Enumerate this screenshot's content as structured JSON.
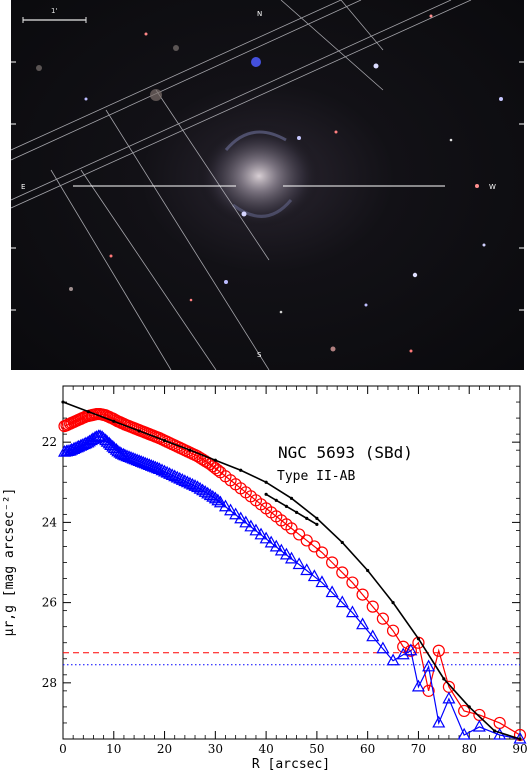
{
  "image": {
    "scale_label": "1'",
    "compass": {
      "north": "N",
      "south": "S",
      "east": "E",
      "west": "W"
    }
  },
  "chart_data": {
    "type": "line",
    "title": "NGC 5693 (SBd)",
    "subtitle": "Type II-AB",
    "xlabel": "R [arcsec]",
    "ylabel": "μr,g [mag arcsec⁻²]",
    "xlim": [
      0,
      90
    ],
    "ylim": [
      29.4,
      20.6
    ],
    "xticks": [
      0,
      10,
      20,
      30,
      40,
      50,
      60,
      70,
      80,
      90
    ],
    "yticks": [
      22,
      24,
      26,
      28
    ],
    "series": [
      {
        "color": "#ff0000",
        "marker": "circle",
        "x": [
          0.3,
          0.7,
          1.0,
          1.4,
          1.7,
          2.1,
          2.4,
          2.8,
          3.1,
          3.5,
          3.8,
          4.2,
          4.5,
          4.9,
          5.2,
          5.6,
          5.9,
          6.3,
          6.6,
          7.0,
          7.3,
          7.7,
          8.0,
          8.4,
          8.7,
          9.1,
          9.4,
          9.8,
          10.1,
          10.5,
          10.8,
          11.2,
          11.5,
          11.9,
          12.2,
          12.6,
          13.0,
          13.4,
          13.8,
          14.2,
          14.6,
          15.0,
          15.4,
          15.8,
          16.2,
          16.6,
          17.0,
          17.4,
          17.8,
          18.2,
          18.6,
          19.0,
          19.5,
          20.0,
          20.5,
          21.0,
          21.5,
          22.0,
          22.5,
          23.0,
          23.5,
          24.0,
          24.5,
          25.0,
          25.5,
          26.0,
          26.5,
          27.0,
          27.5,
          28.0,
          28.5,
          29.0,
          29.5,
          30.0,
          30.5,
          31.0,
          32.0,
          33.0,
          34.0,
          35.0,
          36.0,
          37.0,
          38.0,
          39.0,
          40.0,
          41.0,
          42.0,
          43.0,
          44.0,
          45.0,
          46.5,
          48.0,
          49.5,
          51.0,
          53.0,
          55.0,
          57.0,
          59.0,
          61.0,
          63.0,
          65.0,
          67.0,
          68.5,
          70.0,
          72.0,
          74.0,
          76.0,
          79.0,
          82.0,
          86.0,
          90.0
        ],
        "y": [
          21.6,
          21.58,
          21.56,
          21.54,
          21.52,
          21.5,
          21.48,
          21.46,
          21.44,
          21.42,
          21.4,
          21.38,
          21.36,
          21.35,
          21.34,
          21.33,
          21.32,
          21.31,
          21.3,
          21.3,
          21.3,
          21.31,
          21.32,
          21.33,
          21.35,
          21.37,
          21.39,
          21.41,
          21.43,
          21.46,
          21.48,
          21.5,
          21.52,
          21.54,
          21.56,
          21.58,
          21.6,
          21.62,
          21.64,
          21.66,
          21.68,
          21.7,
          21.72,
          21.74,
          21.76,
          21.78,
          21.8,
          21.82,
          21.84,
          21.86,
          21.88,
          21.9,
          21.93,
          21.96,
          21.99,
          22.02,
          22.05,
          22.08,
          22.11,
          22.14,
          22.17,
          22.2,
          22.23,
          22.26,
          22.29,
          22.32,
          22.35,
          22.39,
          22.43,
          22.47,
          22.51,
          22.55,
          22.6,
          22.65,
          22.7,
          22.75,
          22.85,
          22.95,
          23.05,
          23.15,
          23.25,
          23.35,
          23.45,
          23.55,
          23.65,
          23.75,
          23.85,
          23.95,
          24.05,
          24.15,
          24.3,
          24.45,
          24.6,
          24.75,
          25.0,
          25.25,
          25.5,
          25.8,
          26.1,
          26.4,
          26.7,
          27.1,
          27.2,
          27.0,
          28.2,
          27.2,
          28.1,
          28.7,
          28.8,
          29.0,
          29.3
        ]
      },
      {
        "color": "#0000ff",
        "marker": "triangle",
        "x": [
          0.3,
          0.7,
          1.0,
          1.4,
          1.7,
          2.1,
          2.4,
          2.8,
          3.1,
          3.5,
          3.8,
          4.2,
          4.5,
          4.9,
          5.2,
          5.6,
          5.9,
          6.3,
          6.6,
          7.0,
          7.3,
          7.7,
          8.0,
          8.4,
          8.7,
          9.1,
          9.4,
          9.8,
          10.1,
          10.5,
          10.8,
          11.2,
          11.5,
          11.9,
          12.2,
          12.6,
          13.0,
          13.4,
          13.8,
          14.2,
          14.6,
          15.0,
          15.4,
          15.8,
          16.2,
          16.6,
          17.0,
          17.4,
          17.8,
          18.2,
          18.6,
          19.0,
          19.5,
          20.0,
          20.5,
          21.0,
          21.5,
          22.0,
          22.5,
          23.0,
          23.5,
          24.0,
          24.5,
          25.0,
          25.5,
          26.0,
          26.5,
          27.0,
          27.5,
          28.0,
          28.5,
          29.0,
          29.5,
          30.0,
          30.5,
          31.0,
          32.0,
          33.0,
          34.0,
          35.0,
          36.0,
          37.0,
          38.0,
          39.0,
          40.0,
          41.0,
          42.0,
          43.0,
          44.0,
          45.0,
          46.5,
          48.0,
          49.5,
          51.0,
          53.0,
          55.0,
          57.0,
          59.0,
          61.0,
          63.0,
          65.0,
          67.0,
          68.5,
          70.0,
          72.0,
          74.0,
          76.0,
          79.0,
          82.0,
          86.0,
          90.0
        ],
        "y": [
          22.25,
          22.24,
          22.23,
          22.22,
          22.2,
          22.18,
          22.16,
          22.14,
          22.12,
          22.1,
          22.08,
          22.06,
          22.04,
          22.02,
          21.99,
          21.96,
          21.93,
          21.9,
          21.88,
          21.86,
          21.86,
          21.88,
          21.92,
          21.96,
          22.0,
          22.04,
          22.08,
          22.12,
          22.16,
          22.2,
          22.24,
          22.27,
          22.3,
          22.32,
          22.34,
          22.36,
          22.38,
          22.4,
          22.42,
          22.44,
          22.46,
          22.48,
          22.5,
          22.52,
          22.54,
          22.56,
          22.58,
          22.6,
          22.62,
          22.64,
          22.66,
          22.68,
          22.71,
          22.74,
          22.77,
          22.8,
          22.83,
          22.86,
          22.89,
          22.92,
          22.95,
          22.98,
          23.01,
          23.04,
          23.07,
          23.1,
          23.13,
          23.17,
          23.21,
          23.25,
          23.29,
          23.33,
          23.37,
          23.41,
          23.46,
          23.51,
          23.61,
          23.71,
          23.81,
          23.91,
          24.01,
          24.11,
          24.21,
          24.31,
          24.41,
          24.51,
          24.61,
          24.71,
          24.81,
          24.91,
          25.05,
          25.2,
          25.35,
          25.5,
          25.75,
          26.0,
          26.25,
          26.55,
          26.85,
          27.15,
          27.45,
          27.3,
          27.2,
          28.1,
          27.6,
          29.0,
          28.4,
          29.3,
          29.1,
          29.3,
          29.4
        ]
      },
      {
        "color": "#000000",
        "marker": "dot",
        "x": [
          0,
          5,
          10,
          15,
          20,
          25,
          30,
          35,
          40,
          45,
          50,
          55,
          60,
          65,
          70,
          75,
          80,
          85,
          90
        ],
        "y": [
          21.0,
          21.24,
          21.48,
          21.72,
          21.96,
          22.2,
          22.45,
          22.7,
          23.0,
          23.4,
          23.9,
          24.5,
          25.2,
          26.0,
          26.9,
          27.9,
          28.6,
          29.2,
          29.4
        ]
      },
      {
        "color": "#000000",
        "marker": "dot",
        "x": [
          40,
          42,
          44,
          46,
          48,
          50
        ],
        "y": [
          23.3,
          23.45,
          23.6,
          23.75,
          23.9,
          24.05
        ]
      }
    ],
    "hlines": [
      {
        "y": 27.25,
        "color": "#ff0000",
        "style": "dashed"
      },
      {
        "y": 27.55,
        "color": "#0000ff",
        "style": "dotted"
      }
    ]
  }
}
